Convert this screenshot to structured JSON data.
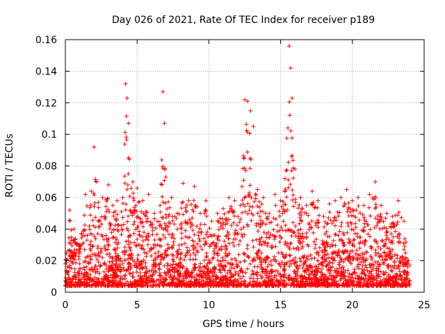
{
  "chart_data": {
    "type": "scatter",
    "title": "Day 026 of 2021, Rate Of TEC Index for receiver p189",
    "xlabel": "GPS time / hours",
    "ylabel": "ROTI / TECUs",
    "xlim": [
      0,
      25
    ],
    "ylim": [
      0,
      0.16
    ],
    "xticks": [
      0,
      5,
      10,
      15,
      20,
      25
    ],
    "yticks": [
      0,
      0.02,
      0.04,
      0.06,
      0.08,
      0.1,
      0.12,
      0.14,
      0.16
    ],
    "xtick_labels": [
      "0",
      "5",
      "10",
      "15",
      "20",
      "25"
    ],
    "ytick_labels": [
      "0",
      "0.02",
      "0.04",
      "0.06",
      "0.08",
      "0.1",
      "0.12",
      "0.14",
      "0.16"
    ],
    "grid": true,
    "marker": "+",
    "color": "#ff0000",
    "series": [
      {
        "name": "ROTI",
        "x": [
          0.0,
          0.3,
          0.6,
          1.0,
          1.4,
          1.8,
          2.0,
          2.2,
          2.6,
          3.0,
          3.3,
          3.6,
          4.0,
          4.2,
          4.3,
          4.4,
          4.7,
          5.0,
          5.4,
          5.8,
          6.2,
          6.6,
          6.8,
          6.9,
          7.0,
          7.4,
          7.8,
          8.2,
          8.6,
          9.0,
          9.4,
          9.8,
          10.2,
          10.6,
          11.0,
          11.4,
          11.8,
          12.2,
          12.5,
          12.7,
          12.9,
          13.1,
          13.4,
          13.8,
          14.2,
          14.6,
          15.0,
          15.3,
          15.6,
          15.7,
          15.8,
          16.0,
          16.4,
          16.8,
          17.2,
          17.6,
          18.0,
          18.4,
          18.8,
          19.2,
          19.6,
          20.0,
          20.4,
          20.8,
          21.2,
          21.6,
          22.0,
          22.4,
          22.8,
          23.2,
          23.6,
          23.9
        ],
        "y": [
          0.018,
          0.052,
          0.04,
          0.03,
          0.062,
          0.064,
          0.092,
          0.07,
          0.06,
          0.068,
          0.055,
          0.058,
          0.06,
          0.132,
          0.123,
          0.107,
          0.07,
          0.066,
          0.058,
          0.062,
          0.05,
          0.055,
          0.127,
          0.107,
          0.073,
          0.06,
          0.05,
          0.069,
          0.058,
          0.067,
          0.05,
          0.058,
          0.045,
          0.05,
          0.053,
          0.06,
          0.058,
          0.055,
          0.122,
          0.121,
          0.115,
          0.105,
          0.065,
          0.06,
          0.05,
          0.062,
          0.058,
          0.072,
          0.156,
          0.142,
          0.123,
          0.078,
          0.06,
          0.055,
          0.064,
          0.058,
          0.048,
          0.056,
          0.058,
          0.06,
          0.065,
          0.058,
          0.06,
          0.055,
          0.062,
          0.07,
          0.055,
          0.05,
          0.048,
          0.058,
          0.045,
          0.02
        ]
      }
    ]
  }
}
